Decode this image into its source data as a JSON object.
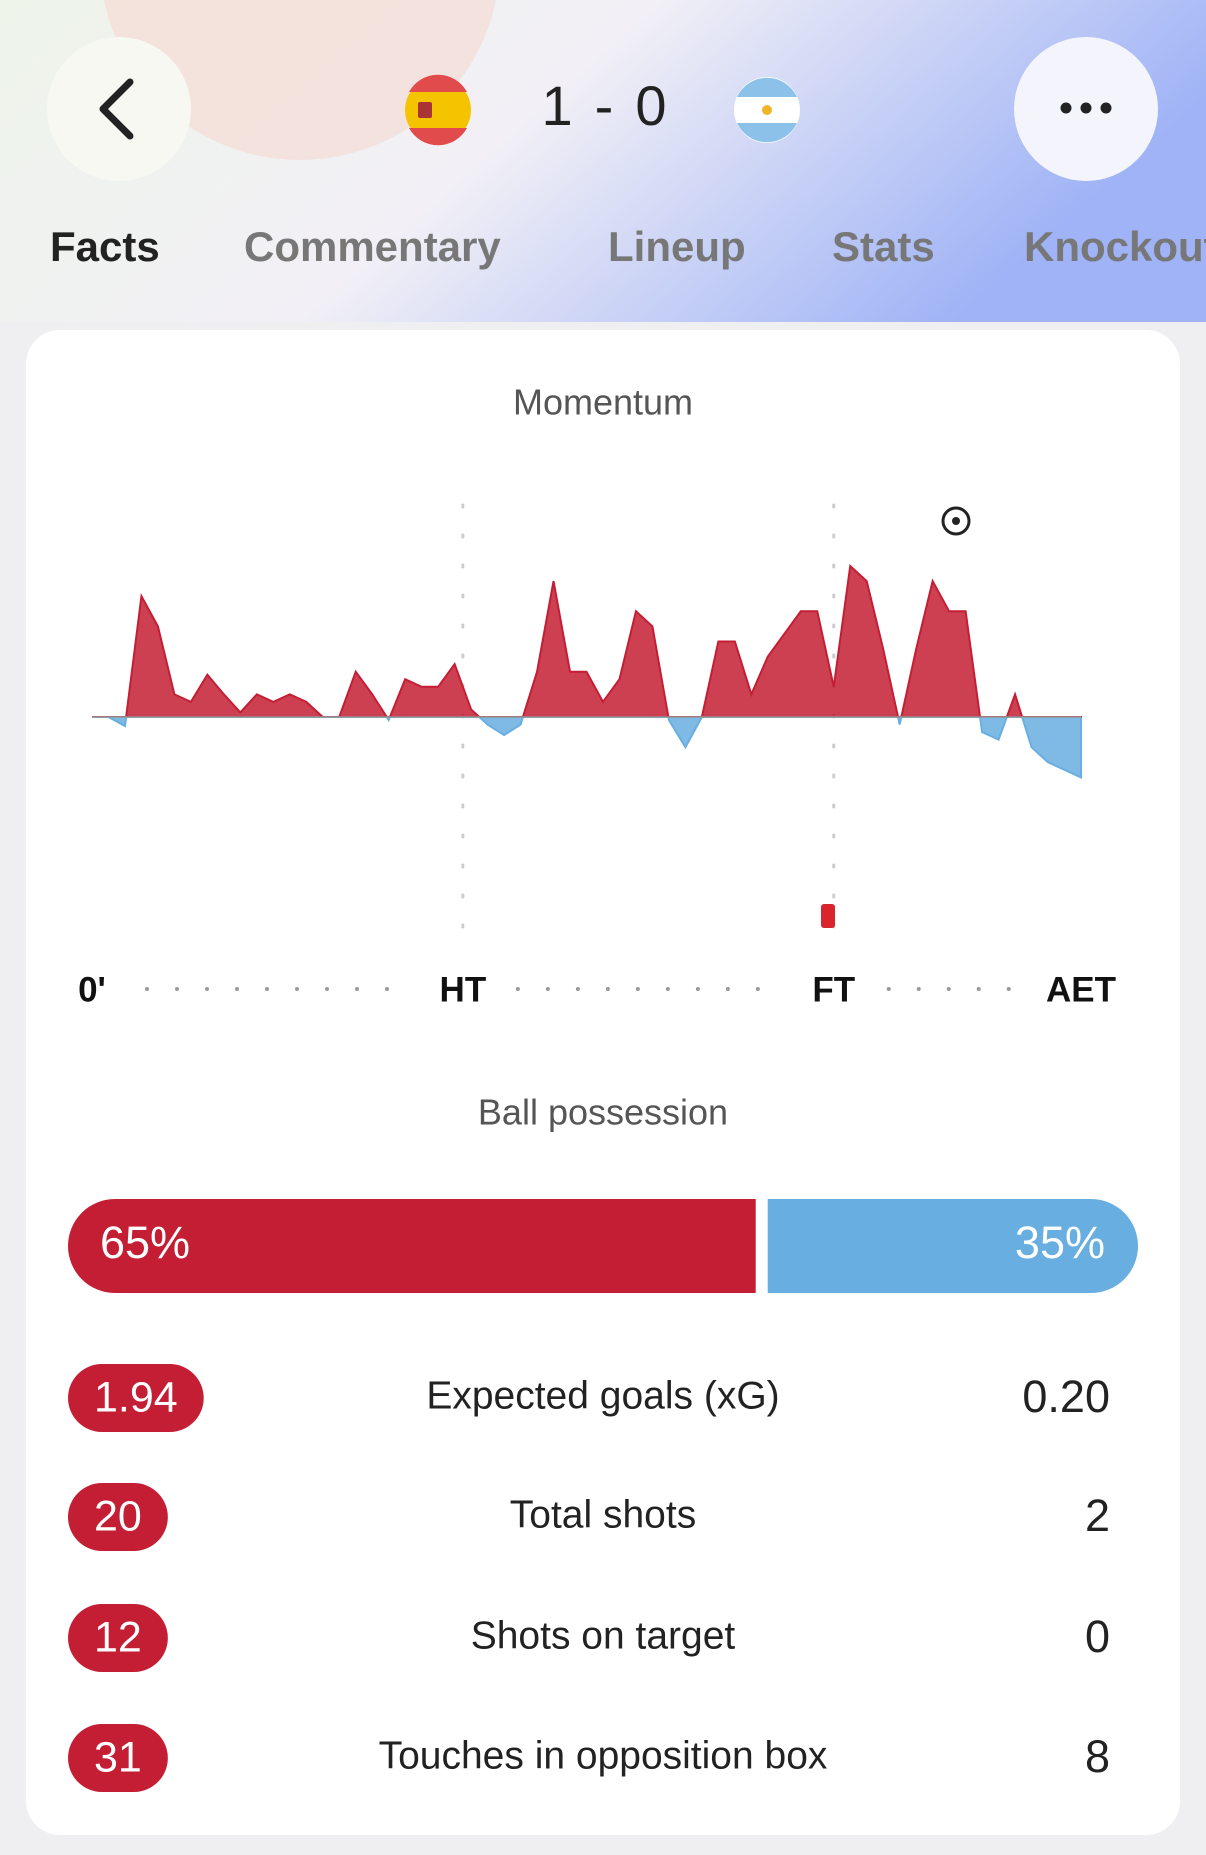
{
  "header": {
    "home_score": 1,
    "separator": "-",
    "away_score": 0
  },
  "tabs": [
    "Facts",
    "Commentary",
    "Lineup",
    "Stats",
    "Knockout"
  ],
  "momentum": {
    "title": "Momentum",
    "x": [
      0,
      2,
      4,
      6,
      8,
      10,
      12,
      14,
      16,
      18,
      20,
      22,
      24,
      26,
      28,
      30,
      32,
      34,
      36,
      38,
      40,
      42,
      44,
      46,
      48,
      50,
      52,
      54,
      56,
      58,
      60,
      62,
      64,
      66,
      68,
      70,
      72,
      74,
      76,
      78,
      80,
      82,
      84,
      86,
      88,
      90,
      92,
      94,
      96,
      98,
      100,
      102,
      104,
      106,
      108,
      110,
      112,
      114,
      116,
      118,
      120
    ],
    "values": [
      0,
      0,
      -6,
      80,
      60,
      15,
      10,
      28,
      15,
      3,
      15,
      10,
      15,
      10,
      0,
      0,
      30,
      15,
      -2,
      25,
      20,
      20,
      35,
      5,
      -5,
      -12,
      -5,
      30,
      90,
      30,
      30,
      10,
      25,
      70,
      60,
      -2,
      -20,
      0,
      50,
      50,
      15,
      40,
      55,
      70,
      70,
      20,
      100,
      90,
      45,
      -5,
      45,
      90,
      70,
      70,
      -10,
      -15,
      15,
      -20,
      -30,
      -35,
      -40
    ],
    "home_color": "#c41e34",
    "away_color": "#68aee0",
    "xlim": [
      0,
      120
    ],
    "ylim": [
      -100,
      100
    ],
    "xticks": [
      {
        "value": 0,
        "label": "0'"
      },
      {
        "value": 45,
        "label": "HT"
      },
      {
        "value": 90,
        "label": "FT"
      },
      {
        "value": 120,
        "label": "AET"
      }
    ]
  },
  "possession": {
    "title": "Ball possession",
    "values": [
      65,
      35
    ],
    "value_labels": [
      "65%",
      "35%"
    ]
  },
  "stats": [
    {
      "home": "1.94",
      "label": "Expected goals (xG)",
      "away": "0.20"
    },
    {
      "home": "20",
      "label": "Total shots",
      "away": "2"
    },
    {
      "home": "12",
      "label": "Shots on target",
      "away": "0"
    },
    {
      "home": "31",
      "label": "Touches in opposition box",
      "away": "8"
    }
  ]
}
